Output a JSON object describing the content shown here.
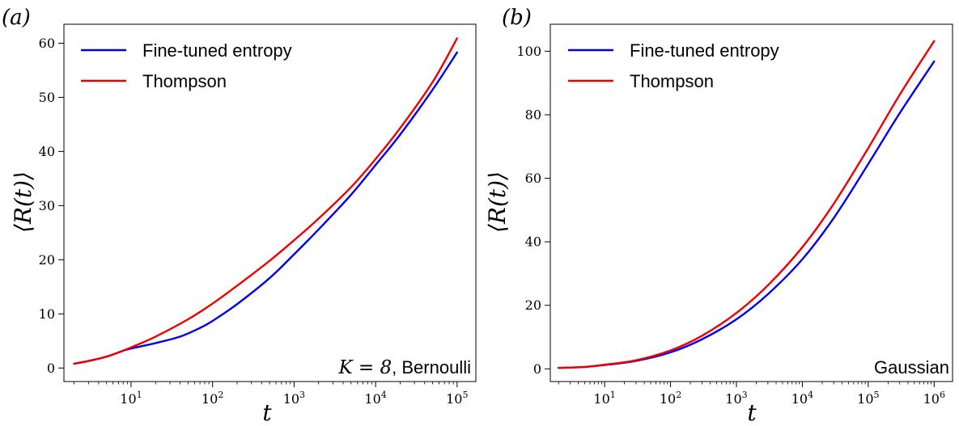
{
  "chart_data": [
    {
      "panel_label": "(a)",
      "type": "line",
      "xscale": "log",
      "xlabel": "t",
      "ylabel": "⟨R(t)⟩",
      "xlim": [
        1.5,
        170000
      ],
      "ylim": [
        -2.5,
        63.5
      ],
      "xticks": [
        {
          "value": 10,
          "base": "10",
          "exp": "1"
        },
        {
          "value": 100,
          "base": "10",
          "exp": "2"
        },
        {
          "value": 1000,
          "base": "10",
          "exp": "3"
        },
        {
          "value": 10000,
          "base": "10",
          "exp": "4"
        },
        {
          "value": 100000,
          "base": "10",
          "exp": "5"
        }
      ],
      "yticks": [
        0,
        10,
        20,
        30,
        40,
        50,
        60
      ],
      "legend_position": "top-left",
      "annotation": {
        "math": "K = 8",
        "text": ", Bernoulli",
        "position": "bottom-right"
      },
      "series": [
        {
          "name": "Fine-tuned entropy",
          "color": "#0000ee",
          "points": [
            [
              2,
              0.8
            ],
            [
              3,
              1.3
            ],
            [
              5,
              2.1
            ],
            [
              8,
              3.2
            ],
            [
              10,
              3.6
            ],
            [
              20,
              4.6
            ],
            [
              40,
              5.8
            ],
            [
              70,
              7.4
            ],
            [
              100,
              8.7
            ],
            [
              200,
              11.8
            ],
            [
              500,
              16.6
            ],
            [
              1000,
              21.0
            ],
            [
              2000,
              25.6
            ],
            [
              5000,
              32.0
            ],
            [
              10000,
              37.5
            ],
            [
              20000,
              43.1
            ],
            [
              50000,
              51.4
            ],
            [
              100000,
              58.3
            ]
          ]
        },
        {
          "name": "Thompson",
          "color": "#ee0000",
          "points": [
            [
              2,
              0.8
            ],
            [
              3,
              1.3
            ],
            [
              5,
              2.1
            ],
            [
              8,
              3.2
            ],
            [
              10,
              3.8
            ],
            [
              20,
              5.8
            ],
            [
              50,
              9.0
            ],
            [
              100,
              11.9
            ],
            [
              200,
              15.2
            ],
            [
              500,
              19.8
            ],
            [
              1000,
              23.6
            ],
            [
              2000,
              27.6
            ],
            [
              5000,
              33.4
            ],
            [
              10000,
              38.6
            ],
            [
              20000,
              44.3
            ],
            [
              50000,
              52.8
            ],
            [
              100000,
              60.9
            ]
          ]
        }
      ]
    },
    {
      "panel_label": "(b)",
      "type": "line",
      "xscale": "log",
      "xlabel": "t",
      "ylabel": "⟨R(t)⟩",
      "xlim": [
        1.5,
        1900000
      ],
      "ylim": [
        -4,
        108.5
      ],
      "xticks": [
        {
          "value": 10,
          "base": "10",
          "exp": "1"
        },
        {
          "value": 100,
          "base": "10",
          "exp": "2"
        },
        {
          "value": 1000,
          "base": "10",
          "exp": "3"
        },
        {
          "value": 10000,
          "base": "10",
          "exp": "4"
        },
        {
          "value": 100000,
          "base": "10",
          "exp": "5"
        },
        {
          "value": 1000000,
          "base": "10",
          "exp": "6"
        }
      ],
      "yticks": [
        0,
        20,
        40,
        60,
        80,
        100
      ],
      "legend_position": "top-left",
      "annotation": {
        "math": "",
        "text": "Gaussian",
        "position": "bottom-right"
      },
      "series": [
        {
          "name": "Fine-tuned entropy",
          "color": "#0000ee",
          "points": [
            [
              2,
              0.3
            ],
            [
              5,
              0.6
            ],
            [
              10,
              1.2
            ],
            [
              30,
              2.5
            ],
            [
              100,
              5.2
            ],
            [
              300,
              9.3
            ],
            [
              1000,
              15.6
            ],
            [
              3000,
              23.5
            ],
            [
              10000,
              34.5
            ],
            [
              30000,
              47.5
            ],
            [
              100000,
              64.5
            ],
            [
              300000,
              80.5
            ],
            [
              1000000,
              96.8
            ]
          ]
        },
        {
          "name": "Thompson",
          "color": "#ee0000",
          "points": [
            [
              2,
              0.3
            ],
            [
              5,
              0.6
            ],
            [
              10,
              1.3
            ],
            [
              30,
              2.7
            ],
            [
              100,
              5.8
            ],
            [
              300,
              10.4
            ],
            [
              1000,
              17.6
            ],
            [
              3000,
              26.3
            ],
            [
              10000,
              38.3
            ],
            [
              30000,
              52.0
            ],
            [
              100000,
              69.5
            ],
            [
              300000,
              86.3
            ],
            [
              1000000,
              103.2
            ]
          ]
        }
      ]
    }
  ]
}
